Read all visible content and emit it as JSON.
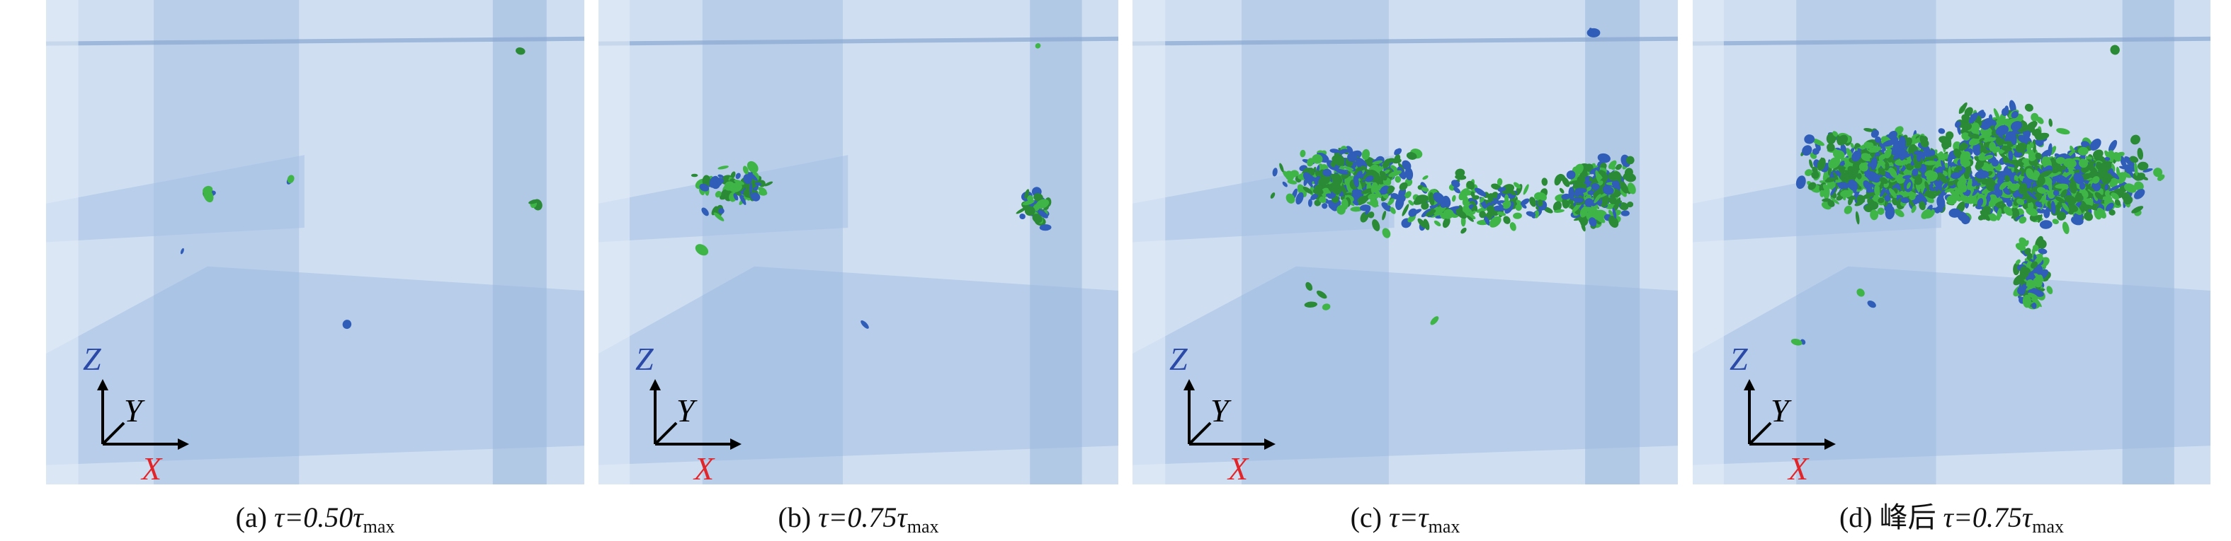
{
  "panels": [
    {
      "axes": {
        "z": "Z",
        "y": "Y",
        "x": "X"
      },
      "caption": {
        "label": "(a) ",
        "expr": "τ=0.50τ",
        "sub": "max"
      }
    },
    {
      "axes": {
        "z": "Z",
        "y": "Y",
        "x": "X"
      },
      "caption": {
        "label": "(b) ",
        "expr": "τ=0.75τ",
        "sub": "max"
      }
    },
    {
      "axes": {
        "z": "Z",
        "y": "Y",
        "x": "X"
      },
      "caption": {
        "label": "(c) ",
        "expr": "τ=τ",
        "sub": "max"
      }
    },
    {
      "axes": {
        "z": "Z",
        "y": "Y",
        "x": "X"
      },
      "caption": {
        "label": "(d) 峰后 ",
        "expr": "τ=0.75τ",
        "sub": "max"
      }
    }
  ]
}
